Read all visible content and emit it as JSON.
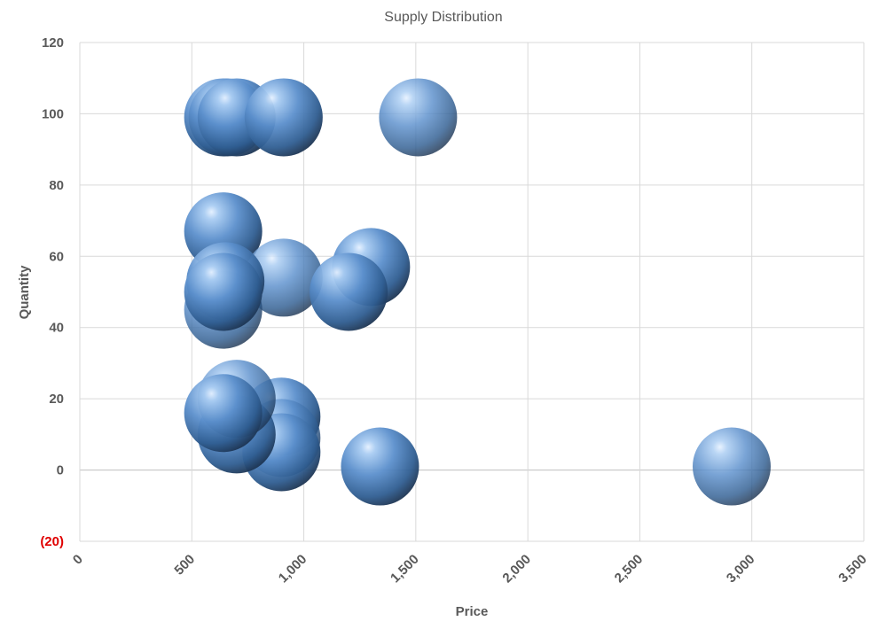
{
  "chart_data": {
    "type": "scatter",
    "title": "Supply Distribution",
    "xlabel": "Price",
    "ylabel": "Quantity",
    "xlim": [
      0,
      3500
    ],
    "ylim": [
      -20,
      120
    ],
    "x_ticks": [
      "0",
      "500",
      "1,000",
      "1,500",
      "2,000",
      "2,500",
      "3,000",
      "3,500"
    ],
    "y_ticks": [
      "120",
      "100",
      "80",
      "60",
      "40",
      "20",
      "0",
      "(20)"
    ],
    "negative_tick_color": "#e00000",
    "marker": "bubble",
    "bubble_color": "#5b9bd5",
    "grid": true,
    "legend": "none",
    "points": [
      {
        "x": 640,
        "y": 99
      },
      {
        "x": 660,
        "y": 99
      },
      {
        "x": 700,
        "y": 99
      },
      {
        "x": 910,
        "y": 99
      },
      {
        "x": 1510,
        "y": 99
      },
      {
        "x": 640,
        "y": 67
      },
      {
        "x": 1300,
        "y": 57
      },
      {
        "x": 910,
        "y": 54
      },
      {
        "x": 1200,
        "y": 50
      },
      {
        "x": 650,
        "y": 53
      },
      {
        "x": 640,
        "y": 45
      },
      {
        "x": 640,
        "y": 50
      },
      {
        "x": 900,
        "y": 15
      },
      {
        "x": 900,
        "y": 9
      },
      {
        "x": 900,
        "y": 5
      },
      {
        "x": 700,
        "y": 10
      },
      {
        "x": 700,
        "y": 20
      },
      {
        "x": 640,
        "y": 16
      },
      {
        "x": 1340,
        "y": 1
      },
      {
        "x": 2910,
        "y": 1
      }
    ]
  }
}
